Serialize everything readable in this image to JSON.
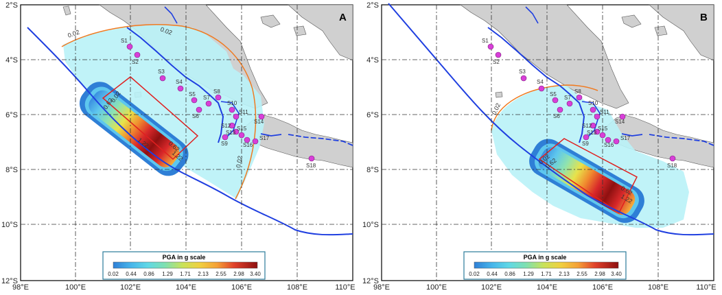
{
  "map": {
    "lat_ticks": [
      "2°S",
      "4°S",
      "6°S",
      "8°S",
      "10°S",
      "12°S"
    ],
    "lon_ticks": [
      "98°E",
      "100°E",
      "102°E",
      "104°E",
      "106°E",
      "108°E",
      "110°E"
    ],
    "legend": {
      "title": "PGA in g scale",
      "ticks": [
        "0.02",
        "0.44",
        "0.86",
        "1.29",
        "1.71",
        "2.13",
        "2.55",
        "2.98",
        "3.40"
      ],
      "colors": [
        "#2f7fd6",
        "#46b4ea",
        "#60d8e6",
        "#7fe0b0",
        "#a8e070",
        "#e8e34a",
        "#f5b13a",
        "#ee6a2a",
        "#d8282a",
        "#8e1010"
      ]
    },
    "colors": {
      "land": "#d0d0d0",
      "sea": "#ffffff",
      "trench": "#1f3fe0",
      "contour": "#f07a20",
      "fault_box": "#e02020",
      "station": "#d83fd8",
      "low_pga": "#b9f2f7"
    }
  },
  "panels": [
    {
      "label": "A",
      "contour_labels": [
        "0.02",
        "0.02",
        "0.02",
        "0.62",
        "0.02",
        "1.22",
        "0.62",
        "1.22"
      ],
      "station_labels": [
        "S1",
        "S2",
        "S3",
        "S4",
        "S5",
        "S6",
        "S7",
        "S8",
        "S9",
        "S10",
        "S11",
        "S12",
        "S13",
        "S14",
        "S15",
        "S16",
        "S17",
        "S18"
      ]
    },
    {
      "label": "B",
      "contour_labels": [
        "0.02",
        "0.02",
        "0.62",
        "0.62",
        "1.22"
      ],
      "station_labels": [
        "S1",
        "S2",
        "S3",
        "S4",
        "S5",
        "S6",
        "S7",
        "S8",
        "S9",
        "S10",
        "S11",
        "S12",
        "S13",
        "S14",
        "S15",
        "S16",
        "S17",
        "S18"
      ]
    }
  ]
}
